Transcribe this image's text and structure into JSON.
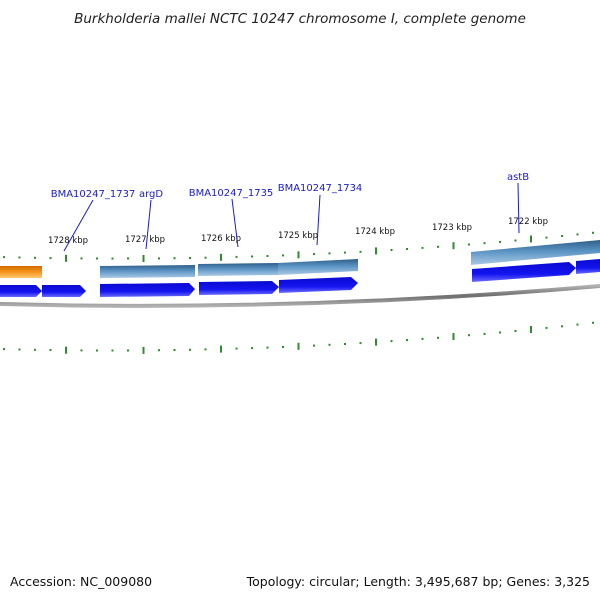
{
  "title": "Burkholderia mallei NCTC 10247 chromosome I, complete genome",
  "footer": {
    "accession": "Accession: NC_009080",
    "summary": "Topology: circular; Length: 3,495,687 bp; Genes: 3,325"
  },
  "ruler": [
    {
      "label": "1728 kbp"
    },
    {
      "label": "1727 kbp"
    },
    {
      "label": "1726 kbp"
    },
    {
      "label": "1725 kbp"
    },
    {
      "label": "1724 kbp"
    },
    {
      "label": "1723 kbp"
    },
    {
      "label": "1722 kbp"
    }
  ],
  "gene_labels": [
    {
      "name": "BMA10247_1737"
    },
    {
      "name": "argD"
    },
    {
      "name": "BMA10247_1735"
    },
    {
      "name": "BMA10247_1734"
    },
    {
      "name": "astB"
    }
  ],
  "colors": {
    "cds": "#1010e6",
    "gene": "#4a82b4",
    "gene_other": "#f08c10",
    "tick": "#2e8b2e",
    "backbone": "#8c8c8c",
    "label": "#1a1acc"
  }
}
